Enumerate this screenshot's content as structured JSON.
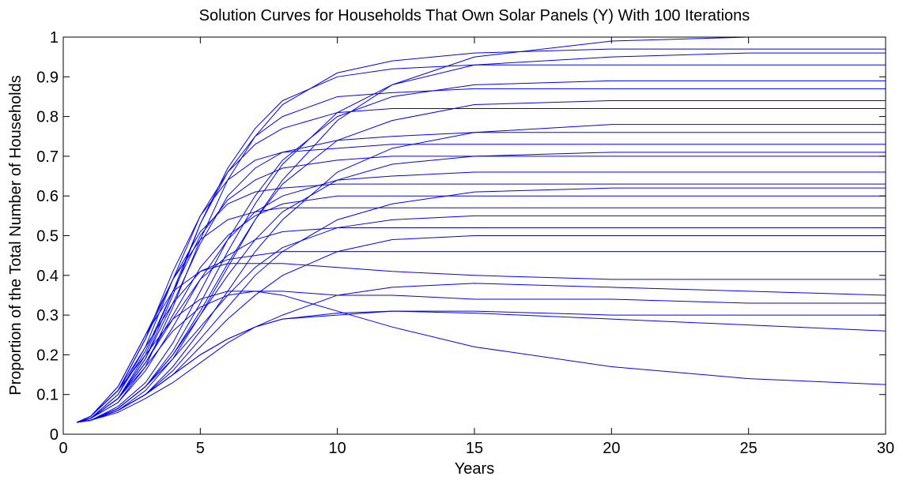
{
  "chart_data": {
    "type": "line",
    "title": "Solution Curves for Households That Own Solar Panels (Y) With 100 Iterations",
    "xlabel": "Years",
    "ylabel": "Proportion of the Total Number of Households",
    "color": "#0000ff",
    "x": [
      0.5,
      1,
      2,
      3,
      4,
      5,
      6,
      7,
      8,
      10,
      12,
      15,
      20,
      25,
      30
    ],
    "xlim": [
      0,
      30
    ],
    "xticks": [
      0,
      5,
      10,
      15,
      20,
      25,
      30
    ],
    "ylim": [
      0,
      1
    ],
    "yticks": [
      0,
      0.1,
      0.2,
      0.3,
      0.4,
      0.5,
      0.6,
      0.7,
      0.8,
      0.9,
      1
    ],
    "grid": false,
    "series": [
      {
        "values": [
          0.03,
          0.035,
          0.06,
          0.11,
          0.19,
          0.3,
          0.42,
          0.54,
          0.64,
          0.79,
          0.88,
          0.95,
          0.99,
          1.0,
          1.0
        ]
      },
      {
        "values": [
          0.03,
          0.04,
          0.08,
          0.17,
          0.32,
          0.49,
          0.64,
          0.75,
          0.83,
          0.91,
          0.94,
          0.96,
          0.97,
          0.97,
          0.97
        ]
      },
      {
        "values": [
          0.03,
          0.035,
          0.065,
          0.12,
          0.21,
          0.33,
          0.46,
          0.58,
          0.68,
          0.81,
          0.88,
          0.93,
          0.95,
          0.96,
          0.96
        ]
      },
      {
        "values": [
          0.03,
          0.04,
          0.09,
          0.19,
          0.35,
          0.53,
          0.67,
          0.77,
          0.84,
          0.9,
          0.92,
          0.93,
          0.93,
          0.93,
          0.93
        ]
      },
      {
        "values": [
          0.03,
          0.035,
          0.07,
          0.13,
          0.23,
          0.36,
          0.49,
          0.6,
          0.69,
          0.8,
          0.85,
          0.88,
          0.89,
          0.89,
          0.89
        ]
      },
      {
        "values": [
          0.03,
          0.04,
          0.09,
          0.2,
          0.36,
          0.53,
          0.66,
          0.75,
          0.8,
          0.85,
          0.86,
          0.87,
          0.87,
          0.87,
          0.87
        ]
      },
      {
        "values": [
          0.03,
          0.035,
          0.065,
          0.12,
          0.2,
          0.31,
          0.43,
          0.54,
          0.63,
          0.74,
          0.79,
          0.83,
          0.84,
          0.84,
          0.84
        ]
      },
      {
        "values": [
          0.03,
          0.04,
          0.1,
          0.22,
          0.39,
          0.55,
          0.66,
          0.73,
          0.77,
          0.81,
          0.82,
          0.82,
          0.82,
          0.82,
          0.82
        ]
      },
      {
        "values": [
          0.03,
          0.035,
          0.06,
          0.1,
          0.17,
          0.26,
          0.36,
          0.46,
          0.54,
          0.66,
          0.72,
          0.76,
          0.78,
          0.78,
          0.78
        ]
      },
      {
        "values": [
          0.03,
          0.04,
          0.09,
          0.19,
          0.33,
          0.48,
          0.6,
          0.67,
          0.71,
          0.74,
          0.75,
          0.76,
          0.76,
          0.76,
          0.76
        ]
      },
      {
        "values": [
          0.03,
          0.045,
          0.11,
          0.24,
          0.41,
          0.55,
          0.64,
          0.69,
          0.71,
          0.72,
          0.73,
          0.73,
          0.73,
          0.73,
          0.73
        ]
      },
      {
        "values": [
          0.03,
          0.035,
          0.065,
          0.12,
          0.2,
          0.3,
          0.4,
          0.49,
          0.56,
          0.64,
          0.68,
          0.7,
          0.71,
          0.71,
          0.71
        ]
      },
      {
        "values": [
          0.03,
          0.04,
          0.1,
          0.21,
          0.36,
          0.5,
          0.59,
          0.64,
          0.67,
          0.69,
          0.7,
          0.7,
          0.7,
          0.7,
          0.7
        ]
      },
      {
        "values": [
          0.03,
          0.04,
          0.08,
          0.16,
          0.27,
          0.39,
          0.49,
          0.56,
          0.6,
          0.64,
          0.65,
          0.66,
          0.66,
          0.66,
          0.66
        ]
      },
      {
        "values": [
          0.03,
          0.045,
          0.11,
          0.24,
          0.39,
          0.51,
          0.58,
          0.61,
          0.62,
          0.63,
          0.63,
          0.63,
          0.63,
          0.63,
          0.63
        ]
      },
      {
        "values": [
          0.03,
          0.035,
          0.06,
          0.1,
          0.16,
          0.24,
          0.32,
          0.4,
          0.46,
          0.54,
          0.58,
          0.61,
          0.62,
          0.62,
          0.62
        ]
      },
      {
        "values": [
          0.03,
          0.04,
          0.09,
          0.18,
          0.3,
          0.42,
          0.5,
          0.55,
          0.58,
          0.6,
          0.6,
          0.6,
          0.6,
          0.6,
          0.6
        ]
      },
      {
        "values": [
          0.03,
          0.045,
          0.12,
          0.25,
          0.39,
          0.49,
          0.54,
          0.56,
          0.57,
          0.57,
          0.57,
          0.57,
          0.57,
          0.57,
          0.57
        ]
      },
      {
        "values": [
          0.03,
          0.035,
          0.065,
          0.12,
          0.19,
          0.27,
          0.35,
          0.42,
          0.47,
          0.52,
          0.54,
          0.55,
          0.55,
          0.55,
          0.55
        ]
      },
      {
        "values": [
          0.03,
          0.04,
          0.09,
          0.18,
          0.29,
          0.39,
          0.45,
          0.49,
          0.51,
          0.52,
          0.52,
          0.52,
          0.52,
          0.52,
          0.52
        ]
      },
      {
        "values": [
          0.03,
          0.035,
          0.06,
          0.1,
          0.15,
          0.22,
          0.29,
          0.35,
          0.4,
          0.46,
          0.49,
          0.5,
          0.5,
          0.5,
          0.5
        ]
      },
      {
        "values": [
          0.03,
          0.045,
          0.11,
          0.22,
          0.33,
          0.41,
          0.44,
          0.45,
          0.46,
          0.46,
          0.46,
          0.46,
          0.46,
          0.46,
          0.46
        ]
      },
      {
        "values": [
          0.03,
          0.045,
          0.12,
          0.25,
          0.36,
          0.41,
          0.43,
          0.43,
          0.43,
          0.42,
          0.41,
          0.4,
          0.39,
          0.39,
          0.39
        ]
      },
      {
        "values": [
          0.03,
          0.035,
          0.055,
          0.09,
          0.13,
          0.18,
          0.23,
          0.27,
          0.3,
          0.35,
          0.37,
          0.38,
          0.37,
          0.36,
          0.35
        ]
      },
      {
        "values": [
          0.03,
          0.035,
          0.06,
          0.1,
          0.15,
          0.2,
          0.24,
          0.27,
          0.29,
          0.305,
          0.31,
          0.305,
          0.29,
          0.275,
          0.26
        ]
      },
      {
        "values": [
          0.03,
          0.045,
          0.11,
          0.2,
          0.29,
          0.34,
          0.36,
          0.36,
          0.35,
          0.31,
          0.27,
          0.22,
          0.17,
          0.14,
          0.125
        ]
      },
      {
        "values": [
          0.03,
          0.04,
          0.09,
          0.17,
          0.26,
          0.32,
          0.35,
          0.36,
          0.36,
          0.35,
          0.35,
          0.34,
          0.34,
          0.33,
          0.33
        ]
      },
      {
        "values": [
          0.03,
          0.035,
          0.06,
          0.1,
          0.15,
          0.2,
          0.24,
          0.27,
          0.29,
          0.3,
          0.31,
          0.31,
          0.3,
          0.3,
          0.3
        ]
      }
    ]
  }
}
